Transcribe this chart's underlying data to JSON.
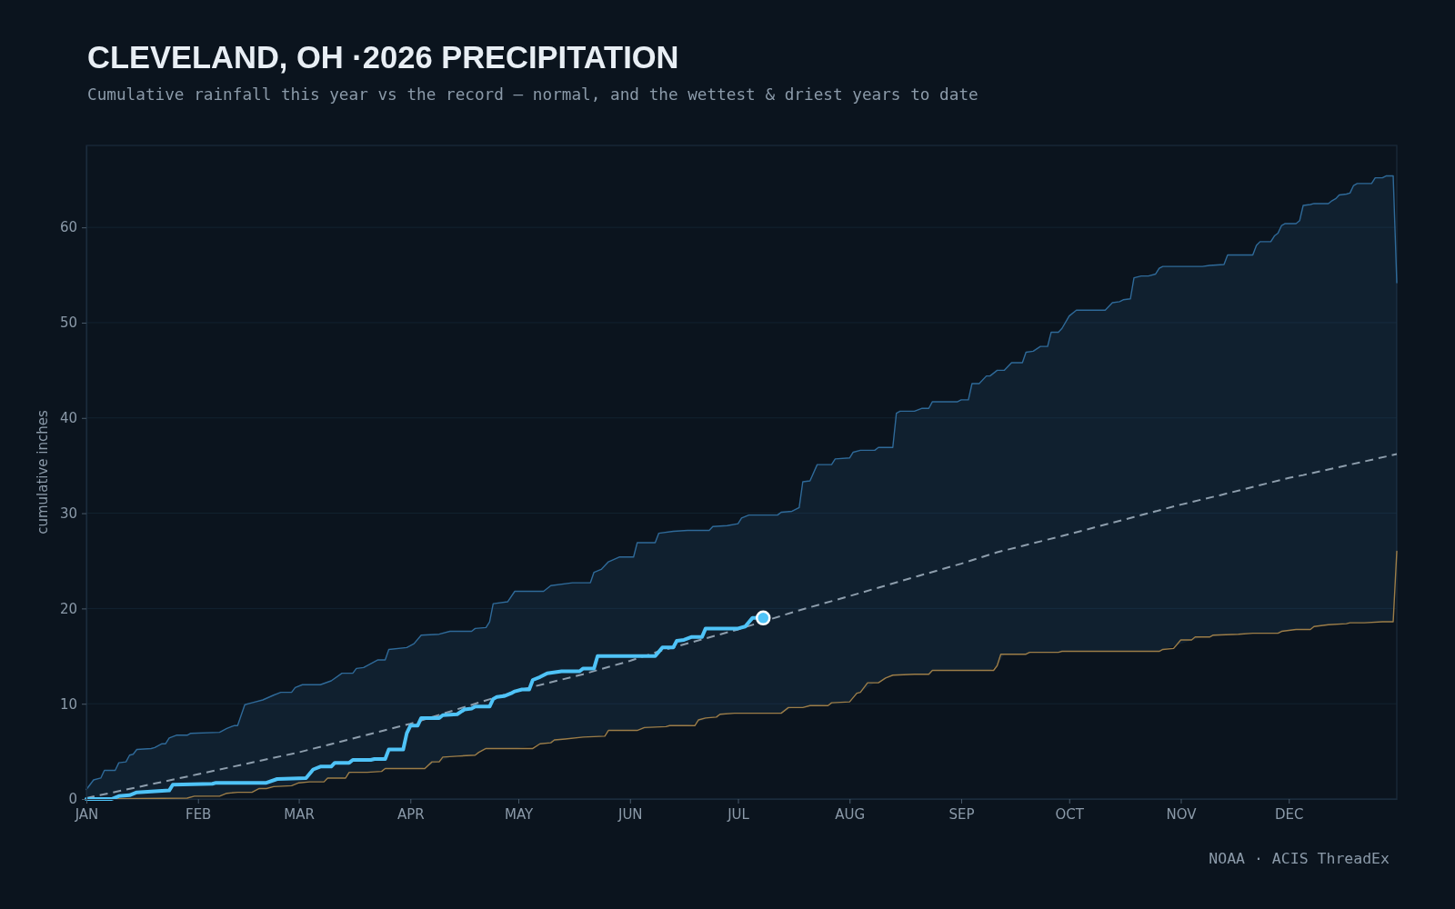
{
  "chart_data": {
    "type": "line",
    "title": "CLEVELAND, OH ·2026 PRECIPITATION",
    "subtitle": "Cumulative rainfall this year vs the record — normal, and the wettest & driest years to date",
    "ylabel": "cumulative inches",
    "annotations": [
      "NOAA · ACIS ThreadEx"
    ],
    "xlim": [
      "2026-01-01",
      "2026-12-31"
    ],
    "xticks": [
      {
        "value": "2026-01-01",
        "label": "JAN"
      },
      {
        "value": "2026-02-01",
        "label": "FEB"
      },
      {
        "value": "2026-03-01",
        "label": "MAR"
      },
      {
        "value": "2026-04-01",
        "label": "APR"
      },
      {
        "value": "2026-05-01",
        "label": "MAY"
      },
      {
        "value": "2026-06-01",
        "label": "JUN"
      },
      {
        "value": "2026-07-01",
        "label": "JUL"
      },
      {
        "value": "2026-08-01",
        "label": "AUG"
      },
      {
        "value": "2026-09-01",
        "label": "SEP"
      },
      {
        "value": "2026-10-01",
        "label": "OCT"
      },
      {
        "value": "2026-11-01",
        "label": "NOV"
      },
      {
        "value": "2026-12-01",
        "label": "DEC"
      }
    ],
    "ylim": [
      0,
      68.6
    ],
    "yticks": [
      0,
      10,
      20,
      30,
      40,
      50,
      60
    ],
    "grid": "y",
    "series": [
      {
        "color": "#2f6a99",
        "x": [
          "2026-01-01",
          "2026-01-03",
          "2026-01-05",
          "2026-01-06",
          "2026-01-09",
          "2026-01-10",
          "2026-01-12",
          "2026-01-13",
          "2026-01-14",
          "2026-01-15",
          "2026-01-19",
          "2026-01-20",
          "2026-01-22",
          "2026-01-23",
          "2026-01-24",
          "2026-01-26",
          "2026-01-29",
          "2026-01-30",
          "2026-02-07",
          "2026-02-09",
          "2026-02-11",
          "2026-02-12",
          "2026-02-14",
          "2026-02-16",
          "2026-02-19",
          "2026-02-22",
          "2026-02-24",
          "2026-02-27",
          "2026-02-28",
          "2026-03-02",
          "2026-03-07",
          "2026-03-10",
          "2026-03-13",
          "2026-03-16",
          "2026-03-17",
          "2026-03-19",
          "2026-03-23",
          "2026-03-25",
          "2026-03-26",
          "2026-03-31",
          "2026-04-02",
          "2026-04-04",
          "2026-04-09",
          "2026-04-12",
          "2026-04-18",
          "2026-04-19",
          "2026-04-22",
          "2026-04-23",
          "2026-04-24",
          "2026-04-28",
          "2026-04-30",
          "2026-05-08",
          "2026-05-10",
          "2026-05-16",
          "2026-05-21",
          "2026-05-22",
          "2026-05-24",
          "2026-05-26",
          "2026-05-29",
          "2026-06-02",
          "2026-06-03",
          "2026-06-08",
          "2026-06-09",
          "2026-06-13",
          "2026-06-17",
          "2026-06-23",
          "2026-06-24",
          "2026-06-28",
          "2026-07-01",
          "2026-07-02",
          "2026-07-04",
          "2026-07-12",
          "2026-07-13",
          "2026-07-16",
          "2026-07-18",
          "2026-07-19",
          "2026-07-21",
          "2026-07-23",
          "2026-07-27",
          "2026-07-28",
          "2026-08-01",
          "2026-08-02",
          "2026-08-04",
          "2026-08-08",
          "2026-08-09",
          "2026-08-13",
          "2026-08-14",
          "2026-08-15",
          "2026-08-19",
          "2026-08-21",
          "2026-08-23",
          "2026-08-24",
          "2026-08-31",
          "2026-09-01",
          "2026-09-03",
          "2026-09-04",
          "2026-09-06",
          "2026-09-08",
          "2026-09-09",
          "2026-09-11",
          "2026-09-13",
          "2026-09-15",
          "2026-09-18",
          "2026-09-19",
          "2026-09-21",
          "2026-09-23",
          "2026-09-25",
          "2026-09-26",
          "2026-09-28",
          "2026-09-29",
          "2026-10-01",
          "2026-10-03",
          "2026-10-11",
          "2026-10-13",
          "2026-10-15",
          "2026-10-16",
          "2026-10-18",
          "2026-10-19",
          "2026-10-21",
          "2026-10-23",
          "2026-10-25",
          "2026-10-26",
          "2026-10-27",
          "2026-11-07",
          "2026-11-09",
          "2026-11-13",
          "2026-11-14",
          "2026-11-21",
          "2026-11-22",
          "2026-11-23",
          "2026-11-26",
          "2026-11-27",
          "2026-11-28",
          "2026-11-29",
          "2026-11-30",
          "2026-12-03",
          "2026-12-04",
          "2026-12-05",
          "2026-12-07",
          "2026-12-08",
          "2026-12-12",
          "2026-12-13",
          "2026-12-14",
          "2026-12-15",
          "2026-12-17",
          "2026-12-18",
          "2026-12-19",
          "2026-12-20",
          "2026-12-24",
          "2026-12-25",
          "2026-12-27",
          "2026-12-28",
          "2026-12-30",
          "2026-12-31"
        ],
        "values": [
          1.0,
          2.0,
          2.2,
          3.0,
          3.0,
          3.8,
          3.9,
          4.6,
          4.7,
          5.2,
          5.3,
          5.4,
          5.8,
          5.8,
          6.4,
          6.7,
          6.7,
          6.9,
          7.0,
          7.4,
          7.7,
          7.7,
          9.9,
          10.1,
          10.4,
          10.9,
          11.2,
          11.2,
          11.7,
          12.0,
          12.0,
          12.4,
          13.2,
          13.2,
          13.7,
          13.8,
          14.6,
          14.6,
          15.7,
          15.9,
          16.3,
          17.2,
          17.3,
          17.6,
          17.6,
          17.9,
          18.0,
          18.6,
          20.5,
          20.7,
          21.8,
          21.8,
          22.4,
          22.7,
          22.7,
          23.8,
          24.1,
          24.9,
          25.4,
          25.4,
          26.9,
          26.9,
          27.9,
          28.1,
          28.2,
          28.2,
          28.6,
          28.7,
          28.9,
          29.5,
          29.8,
          29.8,
          30.1,
          30.2,
          30.6,
          33.3,
          33.4,
          35.1,
          35.1,
          35.7,
          35.8,
          36.4,
          36.6,
          36.6,
          36.9,
          36.9,
          40.5,
          40.7,
          40.7,
          41.0,
          41.0,
          41.7,
          41.7,
          41.9,
          41.9,
          43.6,
          43.6,
          44.4,
          44.4,
          45.0,
          45.0,
          45.8,
          45.8,
          46.9,
          47.0,
          47.5,
          47.5,
          49.0,
          49.0,
          49.4,
          50.7,
          51.3,
          51.3,
          52.1,
          52.2,
          52.4,
          52.5,
          54.7,
          54.9,
          54.9,
          55.1,
          55.7,
          55.9,
          55.9,
          56.0,
          56.1,
          57.1,
          57.1,
          58.1,
          58.5,
          58.5,
          59.1,
          59.4,
          60.2,
          60.4,
          60.4,
          60.7,
          62.3,
          62.4,
          62.5,
          62.5,
          62.8,
          63.0,
          63.4,
          63.5,
          63.6,
          64.4,
          64.6,
          64.6,
          65.2,
          65.2,
          65.4,
          65.4,
          54.2
        ],
        "lower": [
          0,
          0,
          0,
          0,
          0,
          0,
          0,
          0,
          0,
          0,
          0.1,
          0.1,
          0.1,
          0.1,
          0.1,
          0.1,
          0.1,
          0.2,
          0.3,
          0.6,
          0.7,
          0.7,
          0.7,
          0.7,
          1.1,
          1.3,
          1.3,
          1.4,
          1.6,
          1.7,
          1.8,
          2.2,
          2.2,
          2.8,
          2.8,
          2.8,
          2.9,
          3.2,
          3.2,
          3.2,
          3.2,
          3.2,
          3.9,
          4.4,
          4.6,
          4.6,
          5.3,
          5.3,
          5.3,
          5.3,
          5.3,
          5.8,
          5.9,
          6.4,
          6.5,
          6.5,
          6.6,
          7.2,
          7.2,
          7.2,
          7.2,
          7.5,
          7.6,
          7.7,
          7.7,
          8.5,
          8.6,
          8.9,
          9.0,
          9.0,
          9.0,
          9.0,
          9.0,
          9.6,
          9.6,
          9.6,
          9.8,
          9.8,
          10.1,
          10.1,
          10.2,
          10.7,
          11.2,
          12.2,
          12.2,
          13.0,
          13.0,
          13.0,
          13.1,
          13.1,
          13.1,
          13.5,
          13.5,
          13.5,
          13.5,
          13.5,
          13.5,
          13.5,
          13.5,
          14.0,
          15.2,
          15.2,
          15.2,
          15.2,
          15.4,
          15.4,
          15.4,
          15.4,
          15.4,
          15.5,
          15.5,
          15.5,
          15.5,
          15.5,
          15.5,
          15.5,
          15.5,
          15.5,
          15.5,
          15.5,
          15.5,
          15.5,
          15.7,
          17.0,
          17.0,
          17.2,
          17.3,
          17.4,
          17.4,
          17.4,
          17.4,
          17.4,
          17.4,
          17.6,
          17.6,
          17.8,
          17.8,
          17.8,
          17.8,
          18.1,
          18.3,
          18.3,
          18.3,
          18.4,
          18.4,
          18.5,
          18.5,
          18.5,
          18.5,
          18.6,
          18.6,
          18.6,
          18.6,
          26.0
        ],
        "upper": [
          1.0,
          2.0,
          2.2,
          3.0,
          3.0,
          3.8,
          3.9,
          4.6,
          4.7,
          5.2,
          5.3,
          5.4,
          5.8,
          5.8,
          6.4,
          6.7,
          6.7,
          6.9,
          7.0,
          7.4,
          7.7,
          7.7,
          9.9,
          10.1,
          10.4,
          10.9,
          11.2,
          11.2,
          11.7,
          12.0,
          12.0,
          12.4,
          13.2,
          13.2,
          13.7,
          13.8,
          14.6,
          14.6,
          15.7,
          15.9,
          16.3,
          17.2,
          17.3,
          17.6,
          17.6,
          17.9,
          18.0,
          18.6,
          20.5,
          20.7,
          21.8,
          21.8,
          22.4,
          22.7,
          22.7,
          23.8,
          24.1,
          24.9,
          25.4,
          25.4,
          26.9,
          26.9,
          27.9,
          28.1,
          28.2,
          28.2,
          28.6,
          28.7,
          28.9,
          29.5,
          29.8,
          29.8,
          30.1,
          30.2,
          30.6,
          33.3,
          33.4,
          35.1,
          35.1,
          35.7,
          35.8,
          36.4,
          36.6,
          36.6,
          36.9,
          36.9,
          40.5,
          40.7,
          40.7,
          41.0,
          41.0,
          41.7,
          41.7,
          41.9,
          41.9,
          43.6,
          43.6,
          44.4,
          44.4,
          45.0,
          45.0,
          45.8,
          45.8,
          46.9,
          47.0,
          47.5,
          47.5,
          49.0,
          49.0,
          49.4,
          50.7,
          51.3,
          51.3,
          52.1,
          52.2,
          52.4,
          52.5,
          54.7,
          54.9,
          54.9,
          55.1,
          55.7,
          55.9,
          55.9,
          56.0,
          56.1,
          57.1,
          57.1,
          58.1,
          58.5,
          58.5,
          59.1,
          59.4,
          60.2,
          60.4,
          60.4,
          60.7,
          62.3,
          62.4,
          62.5,
          62.5,
          62.8,
          63.0,
          63.4,
          63.5,
          63.6,
          64.4,
          64.6,
          64.6,
          65.2,
          65.2,
          65.4,
          65.4,
          54.2
        ]
      },
      {
        "color": "#9c7d48",
        "x": [
          "2026-01-01",
          "2026-01-29",
          "2026-01-31",
          "2026-02-07",
          "2026-02-09",
          "2026-02-12",
          "2026-02-16",
          "2026-02-18",
          "2026-02-20",
          "2026-02-22",
          "2026-02-27",
          "2026-03-01",
          "2026-03-04",
          "2026-03-08",
          "2026-03-09",
          "2026-03-14",
          "2026-03-15",
          "2026-03-20",
          "2026-03-24",
          "2026-03-25",
          "2026-04-05",
          "2026-04-07",
          "2026-04-09",
          "2026-04-10",
          "2026-04-14",
          "2026-04-19",
          "2026-04-20",
          "2026-04-22",
          "2026-05-05",
          "2026-05-07",
          "2026-05-10",
          "2026-05-11",
          "2026-05-14",
          "2026-05-19",
          "2026-05-25",
          "2026-05-26",
          "2026-06-03",
          "2026-06-05",
          "2026-06-11",
          "2026-06-12",
          "2026-06-19",
          "2026-06-20",
          "2026-06-22",
          "2026-06-25",
          "2026-06-26",
          "2026-06-30",
          "2026-07-13",
          "2026-07-15",
          "2026-07-19",
          "2026-07-21",
          "2026-07-26",
          "2026-07-27",
          "2026-08-01",
          "2026-08-03",
          "2026-08-04",
          "2026-08-06",
          "2026-08-09",
          "2026-08-11",
          "2026-08-13",
          "2026-08-19",
          "2026-08-23",
          "2026-08-24",
          "2026-09-10",
          "2026-09-11",
          "2026-09-12",
          "2026-09-19",
          "2026-09-20",
          "2026-09-28",
          "2026-09-29",
          "2026-10-26",
          "2026-10-27",
          "2026-10-30",
          "2026-11-01",
          "2026-11-04",
          "2026-11-05",
          "2026-11-09",
          "2026-11-10",
          "2026-11-17",
          "2026-11-21",
          "2026-11-28",
          "2026-11-29",
          "2026-12-01",
          "2026-12-03",
          "2026-12-07",
          "2026-12-08",
          "2026-12-12",
          "2026-12-17",
          "2026-12-18",
          "2026-12-22",
          "2026-12-27",
          "2026-12-30",
          "2026-12-31"
        ],
        "values": [
          0,
          0.1,
          0.3,
          0.3,
          0.6,
          0.7,
          0.7,
          1.1,
          1.1,
          1.3,
          1.4,
          1.7,
          1.8,
          1.8,
          2.2,
          2.2,
          2.8,
          2.8,
          2.9,
          3.2,
          3.2,
          3.9,
          3.9,
          4.4,
          4.5,
          4.6,
          4.9,
          5.3,
          5.3,
          5.8,
          5.9,
          6.2,
          6.3,
          6.5,
          6.6,
          7.2,
          7.2,
          7.5,
          7.6,
          7.7,
          7.7,
          8.3,
          8.5,
          8.6,
          8.9,
          9.0,
          9.0,
          9.6,
          9.6,
          9.8,
          9.8,
          10.1,
          10.2,
          11.1,
          11.2,
          12.2,
          12.2,
          12.7,
          13.0,
          13.1,
          13.1,
          13.5,
          13.5,
          14.0,
          15.2,
          15.2,
          15.4,
          15.4,
          15.5,
          15.5,
          15.7,
          15.8,
          16.7,
          16.7,
          17.0,
          17.0,
          17.2,
          17.3,
          17.4,
          17.4,
          17.6,
          17.7,
          17.8,
          17.8,
          18.1,
          18.3,
          18.4,
          18.5,
          18.5,
          18.6,
          18.6,
          26.0
        ]
      },
      {
        "color": "#8d9dac",
        "line_style": "dashed",
        "x": [
          "2026-01-01",
          "2026-02-01",
          "2026-03-01",
          "2026-04-01",
          "2026-05-01",
          "2026-05-19",
          "2026-06-01",
          "2026-06-09",
          "2026-07-01",
          "2026-07-17",
          "2026-08-01",
          "2026-08-20",
          "2026-09-01",
          "2026-09-11",
          "2026-10-01",
          "2026-10-08",
          "2026-10-19",
          "2026-11-01",
          "2026-11-12",
          "2026-12-01",
          "2026-12-05",
          "2026-12-31"
        ],
        "values": [
          0.1,
          2.6,
          4.9,
          7.9,
          11.4,
          13.1,
          14.5,
          15.5,
          17.8,
          19.7,
          21.3,
          23.4,
          24.7,
          25.9,
          27.8,
          28.5,
          29.6,
          30.9,
          31.9,
          33.7,
          34.0,
          36.2
        ]
      },
      {
        "color": "#4fc3f7",
        "x": [
          "2026-01-01",
          "2026-01-08",
          "2026-01-10",
          "2026-01-13",
          "2026-01-15",
          "2026-01-20",
          "2026-01-24",
          "2026-01-25",
          "2026-02-05",
          "2026-02-06",
          "2026-02-20",
          "2026-02-23",
          "2026-03-03",
          "2026-03-05",
          "2026-03-07",
          "2026-03-10",
          "2026-03-11",
          "2026-03-15",
          "2026-03-16",
          "2026-03-21",
          "2026-03-22",
          "2026-03-25",
          "2026-03-26",
          "2026-03-30",
          "2026-03-31",
          "2026-04-01",
          "2026-04-03",
          "2026-04-04",
          "2026-04-09",
          "2026-04-10",
          "2026-04-14",
          "2026-04-16",
          "2026-04-18",
          "2026-04-19",
          "2026-04-23",
          "2026-04-24",
          "2026-04-25",
          "2026-04-27",
          "2026-04-29",
          "2026-04-30",
          "2026-05-02",
          "2026-05-04",
          "2026-05-05",
          "2026-05-07",
          "2026-05-09",
          "2026-05-13",
          "2026-05-18",
          "2026-05-19",
          "2026-05-22",
          "2026-05-23",
          "2026-06-08",
          "2026-06-10",
          "2026-06-13",
          "2026-06-14",
          "2026-06-16",
          "2026-06-18",
          "2026-06-21",
          "2026-06-22",
          "2026-07-01",
          "2026-07-03",
          "2026-07-05",
          "2026-07-08"
        ],
        "values": [
          0,
          0,
          0.3,
          0.4,
          0.7,
          0.8,
          0.9,
          1.5,
          1.6,
          1.7,
          1.7,
          2.1,
          2.2,
          3.1,
          3.4,
          3.4,
          3.8,
          3.8,
          4.1,
          4.1,
          4.2,
          4.2,
          5.2,
          5.2,
          6.9,
          7.7,
          7.7,
          8.5,
          8.5,
          8.8,
          8.9,
          9.4,
          9.5,
          9.7,
          9.7,
          10.5,
          10.7,
          10.8,
          11.1,
          11.3,
          11.5,
          11.5,
          12.5,
          12.8,
          13.2,
          13.4,
          13.4,
          13.7,
          13.7,
          15.0,
          15.0,
          15.9,
          15.9,
          16.6,
          16.7,
          17.0,
          17.0,
          17.9,
          17.9,
          18.1,
          19.0,
          19.0
        ]
      },
      {
        "type": "scatter",
        "color": "#4fc3f7",
        "marker": "circle",
        "x": [
          "2026-07-08"
        ],
        "values": [
          19.0
        ]
      }
    ]
  }
}
